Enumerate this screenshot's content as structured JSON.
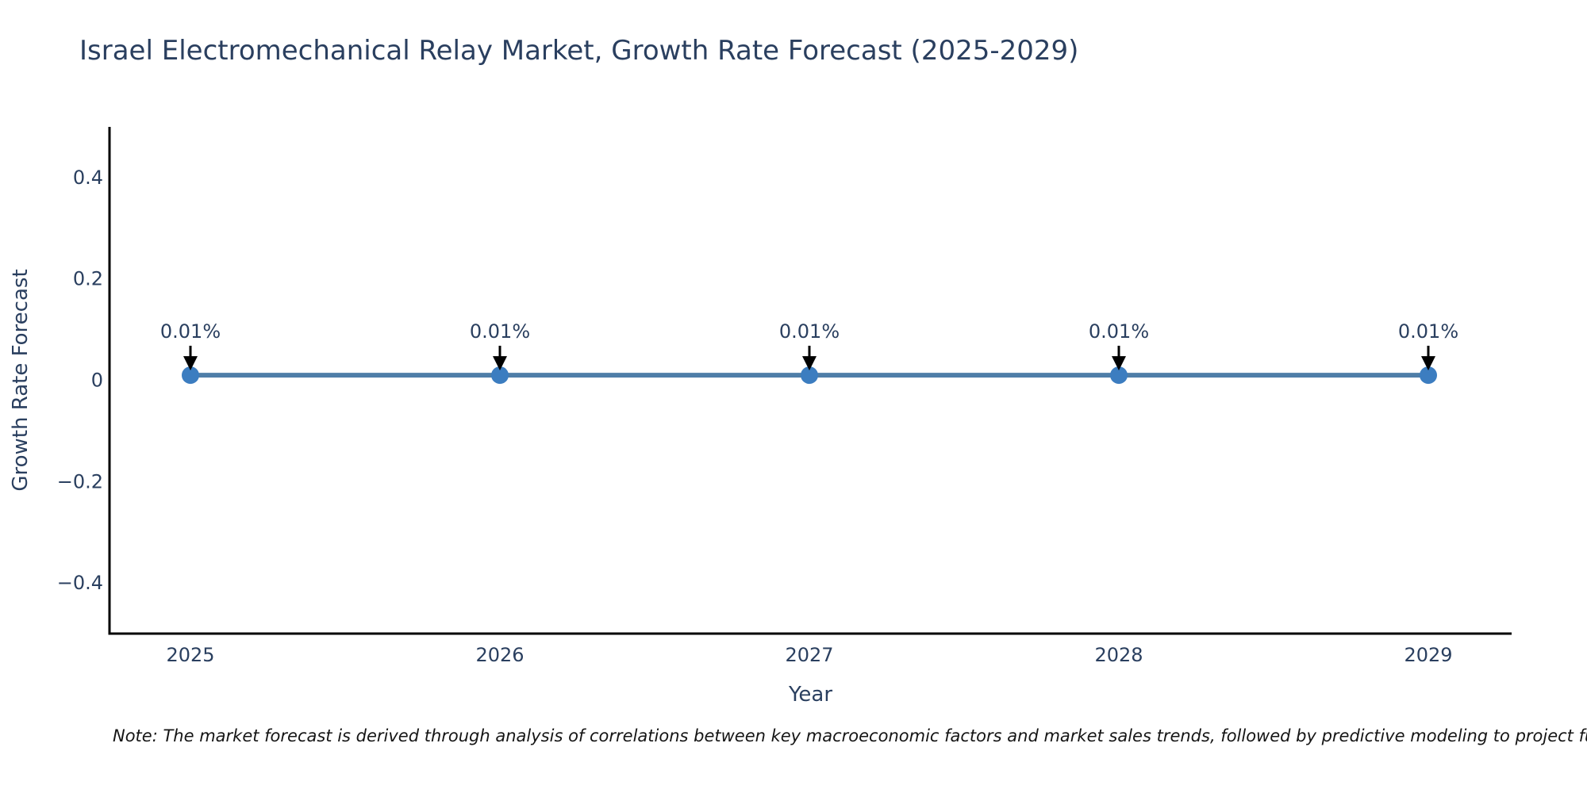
{
  "note": "Note: The market forecast is derived through analysis of correlations between key macroeconomic factors and market sales trends, followed by predictive modeling to project future sal",
  "chart_data": {
    "type": "line",
    "title": "Israel Electromechanical Relay Market, Growth Rate Forecast (2025-2029)",
    "x": [
      2025,
      2026,
      2027,
      2028,
      2029
    ],
    "values": [
      0.01,
      0.01,
      0.01,
      0.01,
      0.01
    ],
    "point_labels": [
      "0.01%",
      "0.01%",
      "0.01%",
      "0.01%",
      "0.01%"
    ],
    "xlabel": "Year",
    "ylabel": "Growth Rate Forecast",
    "ylim": [
      -0.5,
      0.5
    ],
    "yticks": [
      0.4,
      0.2,
      0,
      -0.2,
      -0.4
    ],
    "ytick_labels": [
      "0.4",
      "0.2",
      "0",
      "−0.2",
      "−0.4"
    ],
    "xtick_labels": [
      "2025",
      "2026",
      "2027",
      "2028",
      "2029"
    ],
    "grid": false,
    "legend": "none",
    "colors": {
      "line": "#4f7ea8",
      "marker": "#3c7dc0",
      "axis": "#000000",
      "text": "#2a3f5f",
      "annotation_arrow": "#000000"
    }
  }
}
